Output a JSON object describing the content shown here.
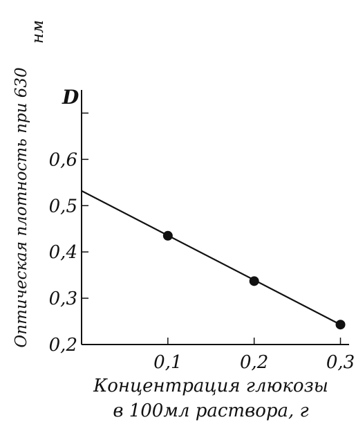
{
  "chart_data": {
    "type": "scatter",
    "x": [
      0.1,
      0.2,
      0.3
    ],
    "y": [
      0.435,
      0.337,
      0.243
    ],
    "fit_line": {
      "x": [
        0.0,
        0.3
      ],
      "y": [
        0.532,
        0.243
      ]
    },
    "xlabel_lines": [
      "Концентрация глюкозы",
      "в 100мл раствора, г"
    ],
    "ylabel_lines": [
      "Оптическая плотность при 630",
      "нм"
    ],
    "y_axis_symbol": "D",
    "xlim": [
      0.0,
      0.31
    ],
    "ylim": [
      0.2,
      0.75
    ],
    "xticks": [
      0.1,
      0.2,
      0.3
    ],
    "yticks": [
      0.2,
      0.3,
      0.4,
      0.5,
      0.6,
      0.7
    ],
    "xtick_labels": [
      "0,1",
      "0,2",
      "0,3"
    ],
    "ytick_labels": [
      "0,2",
      "0,3",
      "0,4",
      "0,5",
      "0,6",
      ""
    ],
    "grid": false,
    "legend": "none",
    "line_color": "#111111",
    "point_color": "#111111"
  }
}
